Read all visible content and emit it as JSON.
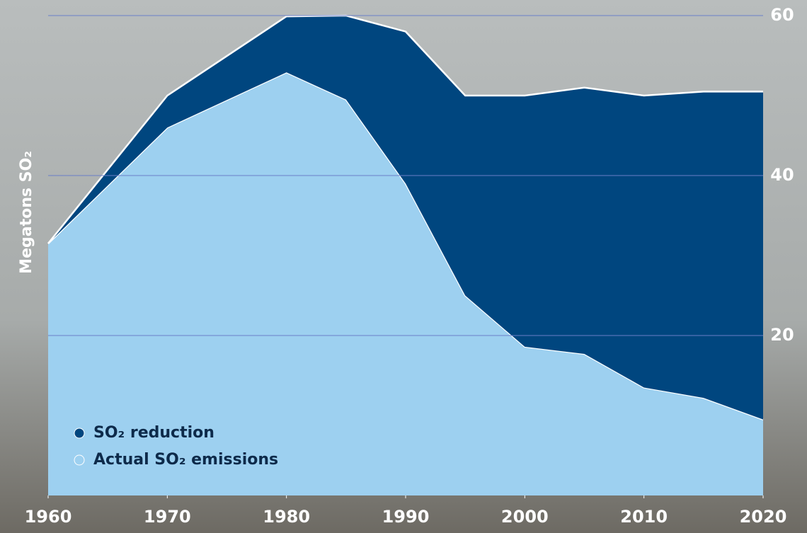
{
  "chart_data": {
    "type": "stacked_area",
    "y_label": "Megatons SO₂",
    "x": [
      1960,
      1970,
      1980,
      1985,
      1990,
      1995,
      2000,
      2005,
      2010,
      2015,
      2020
    ],
    "series": [
      {
        "name": "SO₂ reduction",
        "color": "#00467f",
        "values": [
          0,
          4,
          7,
          10.5,
          19,
          25,
          31.4,
          33.3,
          36.5,
          38.3,
          41
        ]
      },
      {
        "name": "Actual SO₂ emissions",
        "color": "#9dd0f0",
        "values": [
          31.5,
          46,
          52.9,
          49.5,
          39,
          25,
          18.6,
          17.7,
          13.5,
          12.2,
          9.5
        ]
      }
    ],
    "stack_order_bottom_up": [
      "Actual SO₂ emissions",
      "SO₂ reduction"
    ],
    "xlim": [
      1960,
      2020
    ],
    "xticks": [
      1960,
      1970,
      1980,
      1990,
      2000,
      2010,
      2020
    ],
    "ylim": [
      0,
      60
    ],
    "yticks": [
      20,
      40,
      60
    ],
    "grid": true,
    "legend": "lower left"
  }
}
